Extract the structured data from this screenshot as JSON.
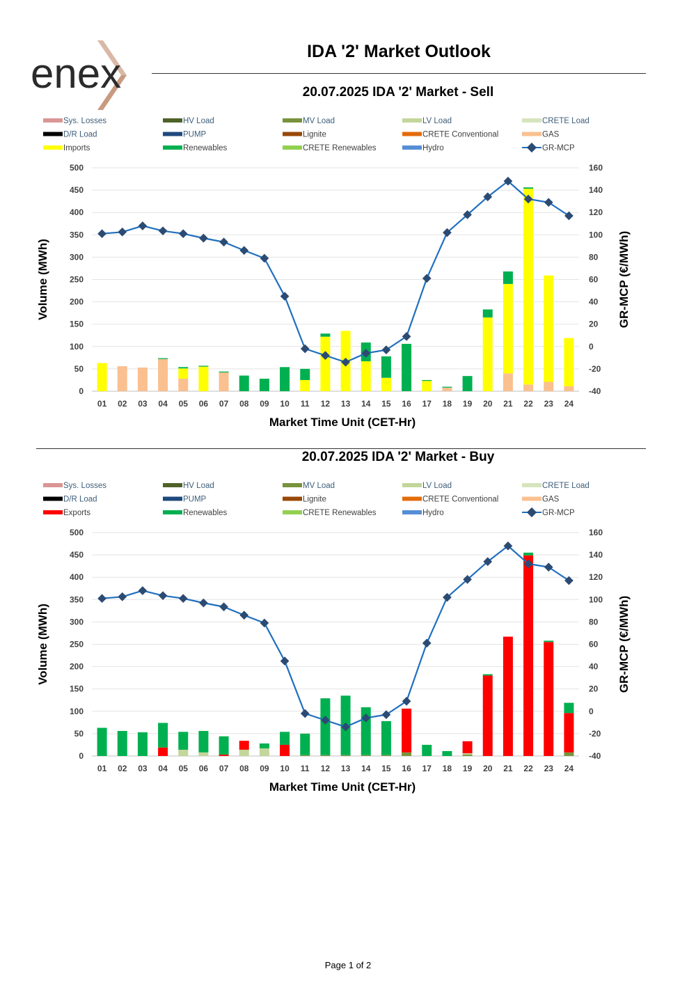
{
  "header": {
    "logo_text": "enex",
    "title": "IDA '2' Market Outlook"
  },
  "footer": {
    "page_label": "Page 1 of 2"
  },
  "colors": {
    "Sys. Losses": "#d99694",
    "HV Load": "#4f6228",
    "MV Load": "#77933c",
    "LV Load": "#c3d69b",
    "CRETE Load": "#d7e4bd",
    "D/R Load": "#000000",
    "PUMP": "#1f497d",
    "Lignite": "#984807",
    "CRETE Conventional": "#e46c0a",
    "GAS": "#fac090",
    "Imports": "#ffff00",
    "Exports": "#ff0000",
    "Renewables": "#00b050",
    "CRETE Renewables": "#92d050",
    "Hydro": "#558ed5",
    "GR-MCP": "#1f6fbf",
    "marker": "#2c4b73"
  },
  "chart_data": [
    {
      "type": "bar",
      "title": "20.07.2025  IDA '2' Market - Sell",
      "xlabel": "Market Time Unit (CET-Hr)",
      "ylabel": "Volume (MWh)",
      "y2label": "GR-MCP (€/MWh)",
      "ylim": [
        0,
        500
      ],
      "y2lim": [
        -40,
        160
      ],
      "yticks": [
        "0",
        "50",
        "100",
        "150",
        "200",
        "250",
        "300",
        "350",
        "400",
        "450",
        "500"
      ],
      "y2ticks": [
        "-40",
        "-20",
        "0",
        "20",
        "40",
        "60",
        "80",
        "100",
        "120",
        "140",
        "160"
      ],
      "categories": [
        "01",
        "02",
        "03",
        "04",
        "05",
        "06",
        "07",
        "08",
        "09",
        "10",
        "11",
        "12",
        "13",
        "14",
        "15",
        "16",
        "17",
        "18",
        "19",
        "20",
        "21",
        "22",
        "23",
        "24"
      ],
      "legend": [
        "Sys. Losses",
        "HV Load",
        "MV Load",
        "LV Load",
        "CRETE Load",
        "D/R Load",
        "PUMP",
        "Lignite",
        "CRETE Conventional",
        "GAS",
        "Imports",
        "Renewables",
        "CRETE Renewables",
        "Hydro",
        "GR-MCP"
      ],
      "stacked": true,
      "series": [
        {
          "name": "GAS",
          "values": [
            0,
            56,
            53,
            72,
            28,
            0,
            42,
            0,
            0,
            0,
            0,
            0,
            0,
            0,
            0,
            0,
            0,
            8,
            0,
            0,
            40,
            15,
            21,
            11
          ]
        },
        {
          "name": "Imports",
          "values": [
            63,
            0,
            0,
            0,
            23,
            55,
            0,
            0,
            0,
            0,
            25,
            122,
            135,
            67,
            30,
            0,
            23,
            0,
            0,
            165,
            200,
            438,
            238,
            108
          ]
        },
        {
          "name": "Renewables",
          "values": [
            0,
            0,
            0,
            2,
            3,
            2,
            2,
            35,
            28,
            54,
            25,
            7,
            0,
            42,
            48,
            106,
            2,
            2,
            34,
            18,
            28,
            3,
            0,
            0
          ]
        }
      ],
      "line": {
        "name": "GR-MCP",
        "values": [
          101,
          102.5,
          108,
          103.5,
          101,
          97,
          93.5,
          86,
          79,
          45,
          -2,
          -8,
          -14,
          -6,
          -3,
          9,
          61,
          102,
          118,
          134,
          148,
          132,
          129,
          117
        ]
      }
    },
    {
      "type": "bar",
      "title": "20.07.2025  IDA '2' Market - Buy",
      "xlabel": "Market Time Unit (CET-Hr)",
      "ylabel": "Volume (MWh)",
      "y2label": "GR-MCP (€/MWh)",
      "ylim": [
        0,
        500
      ],
      "y2lim": [
        -40,
        160
      ],
      "yticks": [
        "0",
        "50",
        "100",
        "150",
        "200",
        "250",
        "300",
        "350",
        "400",
        "450",
        "500"
      ],
      "y2ticks": [
        "-40",
        "-20",
        "0",
        "20",
        "40",
        "60",
        "80",
        "100",
        "120",
        "140",
        "160"
      ],
      "categories": [
        "01",
        "02",
        "03",
        "04",
        "05",
        "06",
        "07",
        "08",
        "09",
        "10",
        "11",
        "12",
        "13",
        "14",
        "15",
        "16",
        "17",
        "18",
        "19",
        "20",
        "21",
        "22",
        "23",
        "24"
      ],
      "legend": [
        "Sys. Losses",
        "HV Load",
        "MV Load",
        "LV Load",
        "CRETE Load",
        "D/R Load",
        "PUMP",
        "Lignite",
        "CRETE Conventional",
        "GAS",
        "Exports",
        "Renewables",
        "CRETE Renewables",
        "Hydro",
        "GR-MCP"
      ],
      "stacked": true,
      "series": [
        {
          "name": "MV Load",
          "values": [
            0,
            0,
            0,
            0,
            0,
            0,
            0,
            0,
            0,
            0,
            2,
            2,
            2,
            2,
            2,
            8,
            0,
            0,
            3,
            0,
            0,
            0,
            0,
            8
          ]
        },
        {
          "name": "LV Load",
          "values": [
            0,
            0,
            0,
            0,
            14,
            8,
            0,
            14,
            17,
            0,
            0,
            0,
            0,
            0,
            0,
            0,
            0,
            0,
            3,
            0,
            0,
            0,
            0,
            0
          ]
        },
        {
          "name": "Exports",
          "values": [
            0,
            0,
            0,
            19,
            0,
            0,
            3,
            20,
            0,
            25,
            0,
            0,
            0,
            0,
            0,
            98,
            0,
            0,
            27,
            180,
            267,
            449,
            255,
            88
          ]
        },
        {
          "name": "Renewables",
          "values": [
            63,
            56,
            53,
            55,
            40,
            48,
            41,
            0,
            11,
            29,
            48,
            127,
            133,
            107,
            76,
            0,
            25,
            11,
            0,
            3,
            0,
            6,
            3,
            23
          ]
        }
      ],
      "line": {
        "name": "GR-MCP",
        "values": [
          101,
          102.5,
          108,
          103.5,
          101,
          97,
          93.5,
          86,
          79,
          45,
          -2,
          -8,
          -14,
          -6,
          -3,
          9,
          61,
          102,
          118,
          134,
          148,
          132,
          129,
          117
        ]
      }
    }
  ]
}
